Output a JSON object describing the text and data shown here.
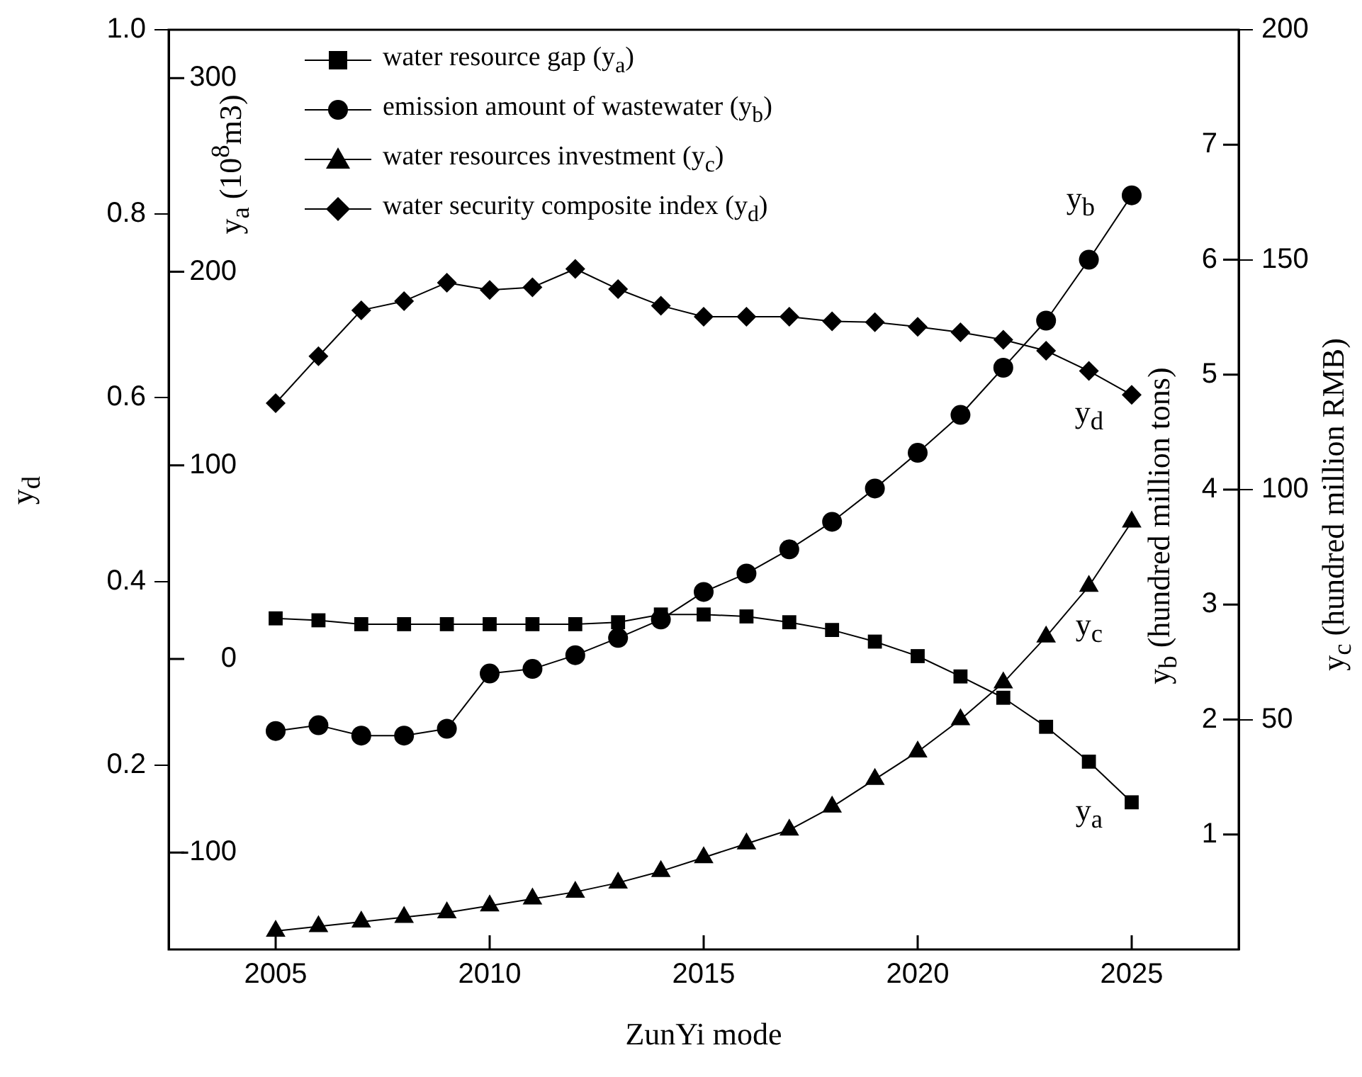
{
  "chart_data": [
    {
      "type": "line",
      "xlabel": "ZunYi mode",
      "ylabel": "y$_{a}$ (10$^{8}$m3)",
      "y2label": "y$_{b}$ (hundred million tons)",
      "y3label": "y$_{c}$ (hundred million RMB)",
      "x": [
        2005,
        2006,
        2007,
        2008,
        2009,
        2010,
        2011,
        2012,
        2013,
        2014,
        2015,
        2016,
        2017,
        2018,
        2019,
        2020,
        2021,
        2022,
        2023,
        2024,
        2025
      ],
      "xlim": [
        2002.5,
        2027.5
      ],
      "xticks": [
        2005,
        2010,
        2015,
        2020,
        2025
      ],
      "ylim": [
        -150,
        325
      ],
      "yticks": [
        -100,
        0,
        100,
        200,
        300
      ],
      "y2lim": [
        0,
        8
      ],
      "y2ticks": [
        1,
        2,
        3,
        4,
        5,
        6,
        7
      ],
      "y3lim": [
        0,
        200
      ],
      "y3ticks": [
        50,
        100,
        150,
        200
      ],
      "legend": "top left",
      "series": [
        {
          "name": "water resource gap (y$_{a}$)",
          "color": "#000000",
          "marker": "square",
          "values": [
            21,
            20,
            18,
            18,
            18,
            18,
            18,
            18,
            19,
            23,
            23,
            22,
            19,
            15,
            9,
            1.5,
            -9,
            -20,
            -35,
            -53,
            -74
          ]
        },
        {
          "name": "emission amount of wastewater (y$_{b}$)",
          "color": "#000000",
          "marker": "circle",
          "axis": "y2",
          "values": [
            1.9,
            1.95,
            1.86,
            1.86,
            1.92,
            2.4,
            2.44,
            2.56,
            2.71,
            2.87,
            3.11,
            3.27,
            3.48,
            3.72,
            4.01,
            4.32,
            4.65,
            5.06,
            5.47,
            6.0,
            6.56
          ]
        },
        {
          "name": "water resources investment (y$_{c}$)",
          "color": "#000000",
          "marker": "triangle",
          "axis": "y3",
          "values": [
            4,
            5,
            6,
            7,
            8,
            9.5,
            11,
            12.5,
            14.5,
            17,
            20,
            23,
            26,
            31,
            37,
            43,
            50,
            58,
            68,
            79,
            93
          ]
        }
      ],
      "annotations": [
        "y$_{a}$",
        "y$_{b}$",
        "y$_{c}$"
      ]
    },
    {
      "type": "line",
      "ylabel": "y$_{d}$",
      "tick_labels": "y",
      "x": [
        2005,
        2006,
        2007,
        2008,
        2009,
        2010,
        2011,
        2012,
        2013,
        2014,
        2015,
        2016,
        2017,
        2018,
        2019,
        2020,
        2021,
        2022,
        2023,
        2024,
        2025
      ],
      "xlim": [
        2002.5,
        2027.5
      ],
      "ylim": [
        0,
        1
      ],
      "yticks": [
        0.2,
        0.4,
        0.6,
        0.8,
        {
          "value": 1,
          "label": "1.0"
        }
      ],
      "legend": "top left",
      "series": [
        {
          "name": "water security composite index (y$_{d}$)",
          "color": "#000000",
          "marker": "diamond",
          "values": [
            0.594,
            0.645,
            0.695,
            0.705,
            0.725,
            0.717,
            0.72,
            0.74,
            0.718,
            0.7,
            0.688,
            0.688,
            0.688,
            0.683,
            0.682,
            0.677,
            0.671,
            0.663,
            0.651,
            0.629,
            0.603
          ]
        }
      ],
      "annotations": [
        "y$_{d}$"
      ]
    }
  ]
}
